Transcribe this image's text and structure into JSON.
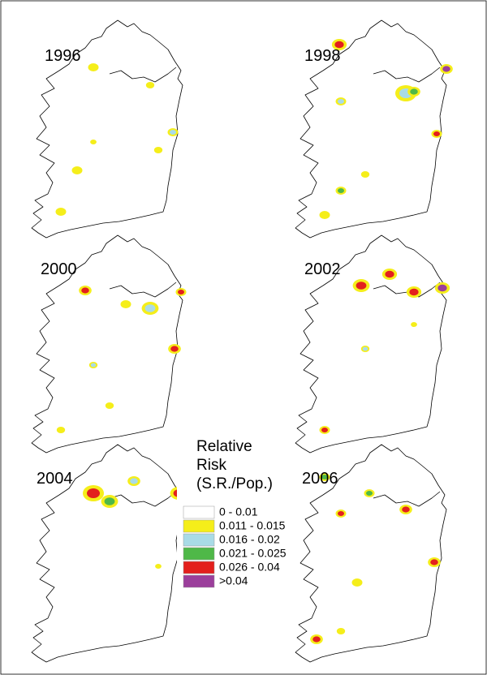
{
  "panels": [
    {
      "label": "1996"
    },
    {
      "label": "1998"
    },
    {
      "label": "2000"
    },
    {
      "label": "2002"
    },
    {
      "label": "2004"
    },
    {
      "label": "2006"
    }
  ],
  "legend": {
    "title_lines": [
      "Relative",
      "Risk",
      "(S.R./Pop.)"
    ],
    "items": [
      {
        "label": "0 - 0.01",
        "color": "#ffffff"
      },
      {
        "label": "0.011 - 0.015",
        "color": "#f5ee1a"
      },
      {
        "label": "0.016 - 0.02",
        "color": "#a9dbe6"
      },
      {
        "label": "0.021 - 0.025",
        "color": "#4fb848"
      },
      {
        "label": "0.026 - 0.04",
        "color": "#e3201d"
      },
      {
        "label": ">0.04",
        "color": "#9b3f9b"
      }
    ]
  }
}
